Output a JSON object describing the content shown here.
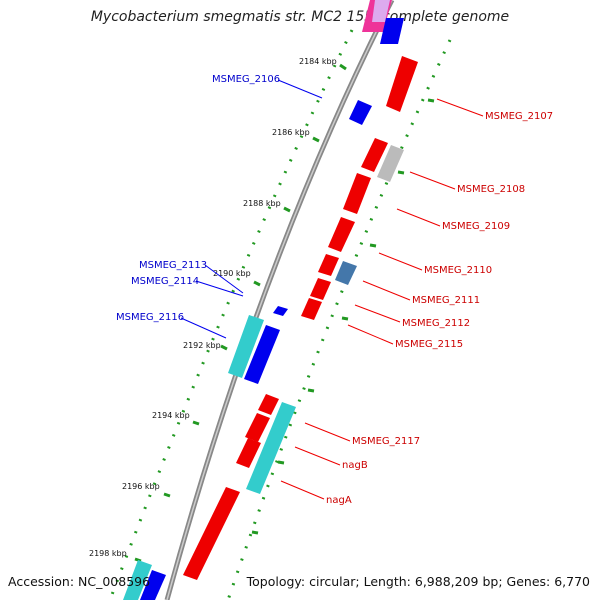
{
  "title": "Mycobacterium smegmatis str. MC2 155, complete genome",
  "footer": {
    "accession": "Accession: NC_008596",
    "summary": "Topology: circular; Length: 6,988,209 bp; Genes: 6,770"
  },
  "colors": {
    "forward": "#ee0000",
    "reverse": "#0000ee",
    "cyan": "#33cccc",
    "grey": "#bbbbbb",
    "steel": "#4477aa",
    "pink": "#ee3399",
    "lavender": "#cc99ee",
    "backbone": "#777777",
    "ticks": "#228822"
  },
  "ticks": [
    "2184 kbp",
    "2186 kbp",
    "2188 kbp",
    "2190 kbp",
    "2192 kbp",
    "2194 kbp",
    "2196 kbp",
    "2198 kbp"
  ],
  "labels": {
    "left": [
      "MSMEG_2106",
      "MSMEG_2113",
      "MSMEG_2114",
      "MSMEG_2116"
    ],
    "right": [
      "MSMEG_2107",
      "MSMEG_2108",
      "MSMEG_2109",
      "MSMEG_2110",
      "MSMEG_2111",
      "MSMEG_2112",
      "MSMEG_2115",
      "MSMEG_2117",
      "nagB",
      "nagA"
    ]
  }
}
